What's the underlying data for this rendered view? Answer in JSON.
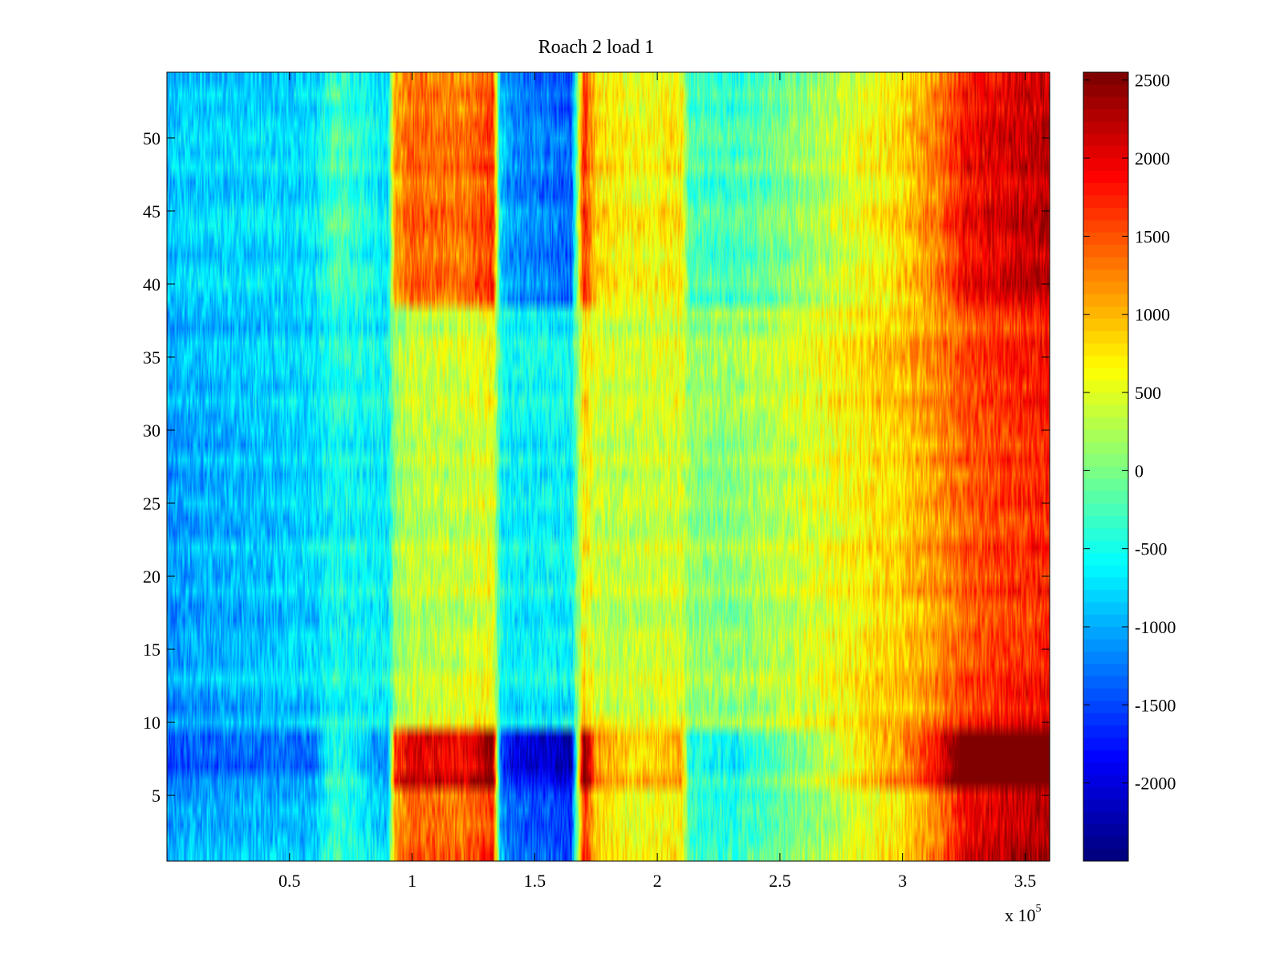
{
  "chart_data": {
    "type": "heatmap",
    "title": "Roach 2 load 1",
    "xlabel": "",
    "ylabel": "",
    "x_multiplier_base": "x 10",
    "x_multiplier_exp": "5",
    "xlim": [
      0,
      3.6
    ],
    "ylim": [
      0.5,
      54.5
    ],
    "x_ticks": [
      0.5,
      1,
      1.5,
      2,
      2.5,
      3,
      3.5
    ],
    "x_tick_labels": [
      "0.5",
      "1",
      "1.5",
      "2",
      "2.5",
      "3",
      "3.5"
    ],
    "y_ticks": [
      5,
      10,
      15,
      20,
      25,
      30,
      35,
      40,
      45,
      50
    ],
    "y_tick_labels": [
      "5",
      "10",
      "15",
      "20",
      "25",
      "30",
      "35",
      "40",
      "45",
      "50"
    ],
    "rows": 54,
    "colormap": "jet",
    "clim": [
      -2500,
      2550
    ],
    "colorbar_ticks": [
      2500,
      2000,
      1500,
      1000,
      500,
      0,
      -500,
      -1000,
      -1500,
      -2000
    ],
    "colorbar_tick_labels": [
      "2500",
      "2000",
      "1500",
      "1000",
      "500",
      "0",
      "-500",
      "-1000",
      "-1500",
      "-2000"
    ],
    "column_profile_x": [
      0,
      0.1,
      0.3,
      0.6,
      0.68,
      0.75,
      0.9,
      0.93,
      1.0,
      1.2,
      1.33,
      1.36,
      1.4,
      1.55,
      1.65,
      1.7,
      1.75,
      1.9,
      2.1,
      2.13,
      2.3,
      2.6,
      2.8,
      3.0,
      3.15,
      3.25,
      3.45,
      3.6
    ],
    "column_profile_value": [
      -800,
      -700,
      -700,
      -650,
      -200,
      -300,
      -650,
      900,
      1200,
      1100,
      1400,
      -700,
      -1000,
      -1100,
      -1200,
      1500,
      700,
      500,
      600,
      -200,
      -300,
      100,
      400,
      700,
      1100,
      1600,
      1800,
      1900
    ],
    "row_groups": [
      {
        "rows": "1-5",
        "note": "strong bands"
      },
      {
        "rows": "6-9",
        "note": "extreme bands (dark blue left, dark red right)"
      },
      {
        "rows": "10-12",
        "note": "muted"
      },
      {
        "rows": "13-38",
        "note": "smooth gradient blue to orange"
      },
      {
        "rows": "39-54",
        "note": "strong bands"
      }
    ]
  }
}
